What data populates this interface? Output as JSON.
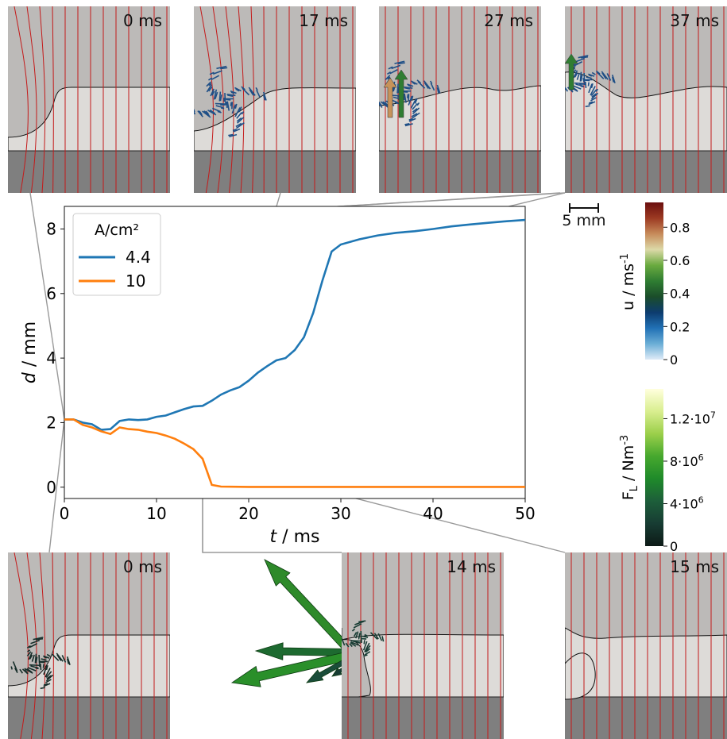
{
  "chart_data": {
    "type": "line",
    "xlabel_var": "t",
    "xlabel_unit": " / ms",
    "ylabel_var": "d",
    "ylabel_unit": " / mm",
    "xlim": [
      0,
      50
    ],
    "ylim": [
      -0.35,
      8.7
    ],
    "xticks": [
      0,
      10,
      20,
      30,
      40,
      50
    ],
    "yticks": [
      0,
      2,
      4,
      6,
      8
    ],
    "legend_title": "A/cm²",
    "legend_placement": "top-left",
    "series": [
      {
        "name": "4.4",
        "color": "#1f77b4",
        "x": [
          0,
          1,
          2,
          3,
          4,
          5,
          6,
          7,
          8,
          9,
          10,
          11,
          12,
          13,
          14,
          15,
          16,
          17,
          18,
          19,
          20,
          21,
          22,
          23,
          24,
          25,
          26,
          27,
          28,
          29,
          30,
          32,
          34,
          36,
          38,
          40,
          42,
          44,
          46,
          48,
          50
        ],
        "y": [
          2.1,
          2.1,
          2.0,
          1.95,
          1.78,
          1.8,
          2.05,
          2.1,
          2.08,
          2.1,
          2.18,
          2.22,
          2.32,
          2.42,
          2.5,
          2.52,
          2.68,
          2.87,
          3.0,
          3.1,
          3.3,
          3.55,
          3.75,
          3.93,
          4.0,
          4.25,
          4.65,
          5.4,
          6.4,
          7.3,
          7.52,
          7.68,
          7.8,
          7.88,
          7.93,
          8.0,
          8.08,
          8.14,
          8.19,
          8.24,
          8.28
        ]
      },
      {
        "name": "10",
        "color": "#ff7f0e",
        "x": [
          0,
          1,
          2,
          3,
          4,
          5,
          6,
          7,
          8,
          9,
          10,
          11,
          12,
          13,
          14,
          15,
          16,
          17,
          20,
          30,
          40,
          50
        ],
        "y": [
          2.1,
          2.1,
          1.93,
          1.85,
          1.73,
          1.65,
          1.85,
          1.8,
          1.78,
          1.72,
          1.68,
          1.6,
          1.5,
          1.35,
          1.18,
          0.88,
          0.07,
          0.02,
          0.01,
          0.01,
          0.01,
          0.01
        ]
      }
    ],
    "snapshots": {
      "top": [
        {
          "label": "0 ms",
          "t": 0,
          "d": 2.1
        },
        {
          "label": "17 ms",
          "t": 17,
          "d": 2.87
        },
        {
          "label": "27 ms",
          "t": 27,
          "d": 5.4
        },
        {
          "label": "37 ms",
          "t": 37,
          "d": 7.93
        }
      ],
      "bottom": [
        {
          "label": "0 ms",
          "t": 0,
          "d": 2.1
        },
        {
          "label": "14 ms",
          "t": 14,
          "d": 1.18
        },
        {
          "label": "15 ms",
          "t": 15,
          "d": 0.88
        }
      ]
    },
    "scale_bar": {
      "label": "5 mm"
    },
    "colorbars": [
      {
        "label_var": "u",
        "label_unit": " / ms",
        "label_sup": "-1",
        "ticks": [
          {
            "label": "0",
            "value": 0
          },
          {
            "label": "0.2",
            "value": 0.2
          },
          {
            "label": "0.4",
            "value": 0.4
          },
          {
            "label": "0.6",
            "value": 0.6
          },
          {
            "label": "0.8",
            "value": 0.8
          }
        ],
        "max": 0.95,
        "colors": [
          "#deebf7",
          "#6baed6",
          "#2171b5",
          "#0d3c6e",
          "#1b4d2a",
          "#2f7d32",
          "#6aaa3f",
          "#dcd9a8",
          "#c78a5a",
          "#9c3a22",
          "#6b0f0f"
        ]
      },
      {
        "label_var": "F",
        "label_sub": "L",
        "label_unit": " / Nm",
        "label_sup": "-3",
        "ticks": [
          {
            "label": "0",
            "value": 0
          },
          {
            "label": "4·10",
            "sup": "6",
            "value": 4000000
          },
          {
            "label": "8·10",
            "sup": "6",
            "value": 8000000
          },
          {
            "label": "1.2·10",
            "sup": "7",
            "value": 12000000
          }
        ],
        "max": 14800000,
        "colors": [
          "#0d1a17",
          "#173c33",
          "#1d5e3a",
          "#1f8a2a",
          "#46a82e",
          "#9bcf4a",
          "#d9ee8f",
          "#ffffdd"
        ]
      }
    ],
    "colors": {
      "upper_fluid": "#bcbab8",
      "middle_fluid": "#dddbd8",
      "lower_fluid": "#7f7f7f",
      "field_lines": "#c41a1a",
      "velocity_arrows": "#1f4f86",
      "connector": "#9a9a9a"
    }
  }
}
